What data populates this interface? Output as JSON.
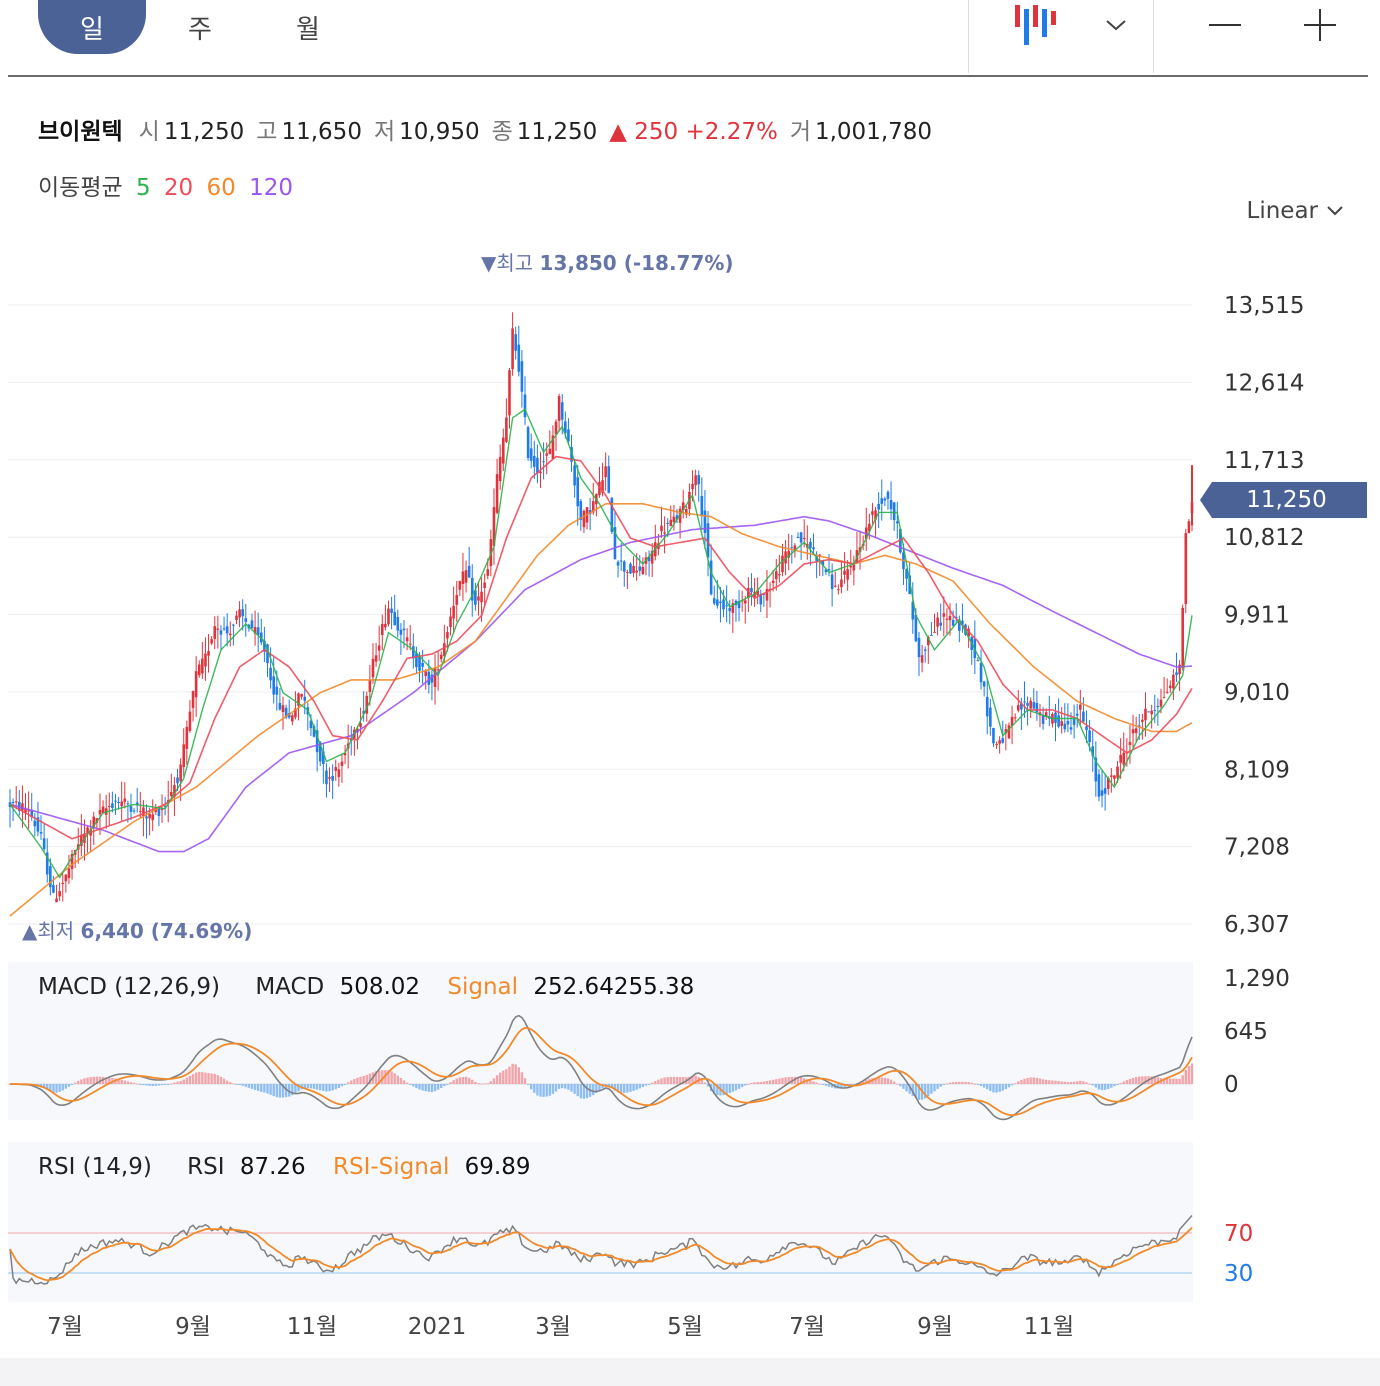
{
  "tabs": [
    "일",
    "주",
    "월"
  ],
  "scale_mode": "Linear",
  "quote": {
    "name": "브이원텍",
    "open_label": "시",
    "open": "11,250",
    "high_label": "고",
    "high": "11,650",
    "low_label": "저",
    "low": "10,950",
    "close_label": "종",
    "close": "11,250",
    "change": "▲ 250 +2.27%",
    "volume_label": "거",
    "volume": "1,001,780"
  },
  "moving_avg": {
    "label": "이동평균",
    "periods": [
      "5",
      "20",
      "60",
      "120"
    ]
  },
  "current_price_tag": "11,250",
  "high_marker": {
    "label": "▼최고",
    "value": "13,850 (-18.77%)"
  },
  "low_marker": {
    "label": "▲최저",
    "value": "6,440 (74.69%)"
  },
  "macd_legend": {
    "title": "MACD (12,26,9)",
    "macd_label": "MACD",
    "macd_value": "508.02",
    "signal_label": "Signal",
    "signal_value": "252.64255.38"
  },
  "rsi_legend": {
    "title": "RSI (14,9)",
    "rsi_label": "RSI",
    "rsi_value": "87.26",
    "signal_label": "RSI-Signal",
    "signal_value": "69.89"
  },
  "colors": {
    "up": "#e0343c",
    "down": "#1e7be8",
    "ma5": "#2bb24c",
    "ma20": "#ee4b5b",
    "ma60": "#f28a2b",
    "ma120": "#9b55f0",
    "tag": "#4b6297",
    "macd_line": "#808080",
    "signal_line": "#f28a2b"
  },
  "chart_data": {
    "type": "candlestick",
    "price_axis": {
      "ticks": [
        "13,515",
        "12,614",
        "11,713",
        "10,812",
        "9,911",
        "9,010",
        "8,109",
        "7,208",
        "6,307"
      ],
      "ylim": [
        6307,
        13515
      ]
    },
    "x_axis": {
      "ticks": [
        "7월",
        "9월",
        "11월",
        "2021",
        "3월",
        "5월",
        "7월",
        "9월",
        "11월"
      ]
    },
    "close_path": [
      [
        0,
        7700
      ],
      [
        6,
        7650
      ],
      [
        10,
        7300
      ],
      [
        14,
        6600
      ],
      [
        18,
        6850
      ],
      [
        22,
        7250
      ],
      [
        28,
        7550
      ],
      [
        34,
        7750
      ],
      [
        40,
        7680
      ],
      [
        45,
        7550
      ],
      [
        50,
        7700
      ],
      [
        55,
        8100
      ],
      [
        60,
        9200
      ],
      [
        63,
        9400
      ],
      [
        66,
        9800
      ],
      [
        70,
        9700
      ],
      [
        74,
        9900
      ],
      [
        78,
        9750
      ],
      [
        82,
        9500
      ],
      [
        86,
        8900
      ],
      [
        90,
        8700
      ],
      [
        94,
        9000
      ],
      [
        98,
        8500
      ],
      [
        102,
        8000
      ],
      [
        106,
        8100
      ],
      [
        110,
        8500
      ],
      [
        114,
        8800
      ],
      [
        118,
        9500
      ],
      [
        122,
        10000
      ],
      [
        125,
        9800
      ],
      [
        128,
        9600
      ],
      [
        132,
        9300
      ],
      [
        136,
        9100
      ],
      [
        140,
        9600
      ],
      [
        144,
        10200
      ],
      [
        147,
        10400
      ],
      [
        150,
        10000
      ],
      [
        154,
        10400
      ],
      [
        157,
        11500
      ],
      [
        160,
        12200
      ],
      [
        162,
        13200
      ],
      [
        164,
        12800
      ],
      [
        167,
        11800
      ],
      [
        170,
        11600
      ],
      [
        174,
        11800
      ],
      [
        177,
        12400
      ],
      [
        180,
        11900
      ],
      [
        184,
        11000
      ],
      [
        188,
        11200
      ],
      [
        192,
        11600
      ],
      [
        195,
        10600
      ],
      [
        198,
        10450
      ],
      [
        202,
        10400
      ],
      [
        206,
        10550
      ],
      [
        210,
        10900
      ],
      [
        214,
        11000
      ],
      [
        218,
        11200
      ],
      [
        221,
        11600
      ],
      [
        224,
        10900
      ],
      [
        226,
        10100
      ],
      [
        230,
        10000
      ],
      [
        234,
        10000
      ],
      [
        238,
        10200
      ],
      [
        242,
        10100
      ],
      [
        246,
        10300
      ],
      [
        250,
        10600
      ],
      [
        254,
        10800
      ],
      [
        258,
        10700
      ],
      [
        262,
        10500
      ],
      [
        266,
        10200
      ],
      [
        270,
        10400
      ],
      [
        274,
        10700
      ],
      [
        277,
        11000
      ],
      [
        280,
        11200
      ],
      [
        283,
        11300
      ],
      [
        286,
        10900
      ],
      [
        290,
        10100
      ],
      [
        293,
        9400
      ],
      [
        297,
        9700
      ],
      [
        301,
        9900
      ],
      [
        305,
        9800
      ],
      [
        309,
        9700
      ],
      [
        313,
        9200
      ],
      [
        317,
        8400
      ],
      [
        321,
        8500
      ],
      [
        325,
        8800
      ],
      [
        329,
        8900
      ],
      [
        333,
        8700
      ],
      [
        337,
        8700
      ],
      [
        341,
        8600
      ],
      [
        345,
        8800
      ],
      [
        348,
        8400
      ],
      [
        351,
        7800
      ],
      [
        355,
        8000
      ],
      [
        359,
        8300
      ],
      [
        363,
        8600
      ],
      [
        367,
        8800
      ],
      [
        371,
        8900
      ],
      [
        374,
        9100
      ],
      [
        377,
        9300
      ],
      [
        379,
        10800
      ],
      [
        381,
        11250
      ]
    ],
    "ma5": [
      [
        0,
        7700
      ],
      [
        10,
        7200
      ],
      [
        16,
        6850
      ],
      [
        22,
        7200
      ],
      [
        30,
        7600
      ],
      [
        40,
        7700
      ],
      [
        50,
        7650
      ],
      [
        56,
        8000
      ],
      [
        62,
        8800
      ],
      [
        68,
        9500
      ],
      [
        76,
        9800
      ],
      [
        82,
        9600
      ],
      [
        88,
        9000
      ],
      [
        96,
        8800
      ],
      [
        102,
        8200
      ],
      [
        108,
        8300
      ],
      [
        116,
        8900
      ],
      [
        122,
        9700
      ],
      [
        130,
        9500
      ],
      [
        138,
        9200
      ],
      [
        144,
        9800
      ],
      [
        150,
        10200
      ],
      [
        156,
        10700
      ],
      [
        162,
        12200
      ],
      [
        166,
        12300
      ],
      [
        172,
        11800
      ],
      [
        178,
        12100
      ],
      [
        184,
        11500
      ],
      [
        190,
        11200
      ],
      [
        196,
        10800
      ],
      [
        204,
        10500
      ],
      [
        212,
        10850
      ],
      [
        220,
        11300
      ],
      [
        226,
        10400
      ],
      [
        232,
        10000
      ],
      [
        240,
        10150
      ],
      [
        248,
        10500
      ],
      [
        256,
        10750
      ],
      [
        264,
        10400
      ],
      [
        272,
        10500
      ],
      [
        280,
        11100
      ],
      [
        286,
        11100
      ],
      [
        292,
        9900
      ],
      [
        298,
        9500
      ],
      [
        306,
        9850
      ],
      [
        314,
        9300
      ],
      [
        320,
        8500
      ],
      [
        328,
        8800
      ],
      [
        336,
        8700
      ],
      [
        344,
        8700
      ],
      [
        350,
        8200
      ],
      [
        356,
        7900
      ],
      [
        364,
        8500
      ],
      [
        372,
        8850
      ],
      [
        378,
        9200
      ],
      [
        381,
        9900
      ]
    ],
    "ma20": [
      [
        0,
        7700
      ],
      [
        20,
        7300
      ],
      [
        40,
        7550
      ],
      [
        50,
        7700
      ],
      [
        58,
        7950
      ],
      [
        66,
        8700
      ],
      [
        74,
        9300
      ],
      [
        82,
        9500
      ],
      [
        90,
        9300
      ],
      [
        98,
        8900
      ],
      [
        104,
        8500
      ],
      [
        112,
        8450
      ],
      [
        120,
        8900
      ],
      [
        128,
        9400
      ],
      [
        136,
        9450
      ],
      [
        144,
        9600
      ],
      [
        152,
        9900
      ],
      [
        160,
        10800
      ],
      [
        168,
        11500
      ],
      [
        176,
        11750
      ],
      [
        184,
        11700
      ],
      [
        192,
        11300
      ],
      [
        200,
        10800
      ],
      [
        208,
        10700
      ],
      [
        216,
        10750
      ],
      [
        224,
        10800
      ],
      [
        232,
        10400
      ],
      [
        240,
        10100
      ],
      [
        248,
        10250
      ],
      [
        256,
        10500
      ],
      [
        264,
        10550
      ],
      [
        272,
        10500
      ],
      [
        280,
        10650
      ],
      [
        288,
        10800
      ],
      [
        296,
        10400
      ],
      [
        304,
        9900
      ],
      [
        312,
        9600
      ],
      [
        320,
        9100
      ],
      [
        328,
        8800
      ],
      [
        336,
        8800
      ],
      [
        344,
        8700
      ],
      [
        352,
        8500
      ],
      [
        360,
        8300
      ],
      [
        368,
        8450
      ],
      [
        376,
        8750
      ],
      [
        381,
        9050
      ]
    ],
    "ma60": [
      [
        0,
        6400
      ],
      [
        20,
        7000
      ],
      [
        40,
        7500
      ],
      [
        60,
        7900
      ],
      [
        80,
        8500
      ],
      [
        100,
        9000
      ],
      [
        110,
        9150
      ],
      [
        124,
        9150
      ],
      [
        138,
        9300
      ],
      [
        150,
        9600
      ],
      [
        160,
        10100
      ],
      [
        170,
        10600
      ],
      [
        180,
        10950
      ],
      [
        192,
        11200
      ],
      [
        204,
        11200
      ],
      [
        216,
        11100
      ],
      [
        226,
        11050
      ],
      [
        236,
        10850
      ],
      [
        248,
        10700
      ],
      [
        260,
        10600
      ],
      [
        272,
        10500
      ],
      [
        282,
        10600
      ],
      [
        292,
        10500
      ],
      [
        304,
        10300
      ],
      [
        316,
        9800
      ],
      [
        330,
        9300
      ],
      [
        344,
        8900
      ],
      [
        356,
        8700
      ],
      [
        368,
        8550
      ],
      [
        376,
        8550
      ],
      [
        381,
        8650
      ]
    ],
    "ma120": [
      [
        0,
        7700
      ],
      [
        30,
        7400
      ],
      [
        48,
        7150
      ],
      [
        56,
        7150
      ],
      [
        64,
        7300
      ],
      [
        76,
        7900
      ],
      [
        90,
        8300
      ],
      [
        110,
        8500
      ],
      [
        130,
        9000
      ],
      [
        150,
        9600
      ],
      [
        166,
        10200
      ],
      [
        184,
        10550
      ],
      [
        200,
        10750
      ],
      [
        220,
        10900
      ],
      [
        240,
        10950
      ],
      [
        256,
        11050
      ],
      [
        264,
        11000
      ],
      [
        276,
        10850
      ],
      [
        290,
        10650
      ],
      [
        304,
        10450
      ],
      [
        320,
        10250
      ],
      [
        336,
        9950
      ],
      [
        350,
        9700
      ],
      [
        364,
        9450
      ],
      [
        376,
        9300
      ],
      [
        381,
        9310
      ]
    ],
    "macd": {
      "ticks": [
        "1,290",
        "645",
        "0"
      ],
      "macd_value": 508.02
    },
    "rsi": {
      "levels": [
        70,
        30
      ],
      "rsi_value": 87.26,
      "signal_value": 69.89
    }
  }
}
